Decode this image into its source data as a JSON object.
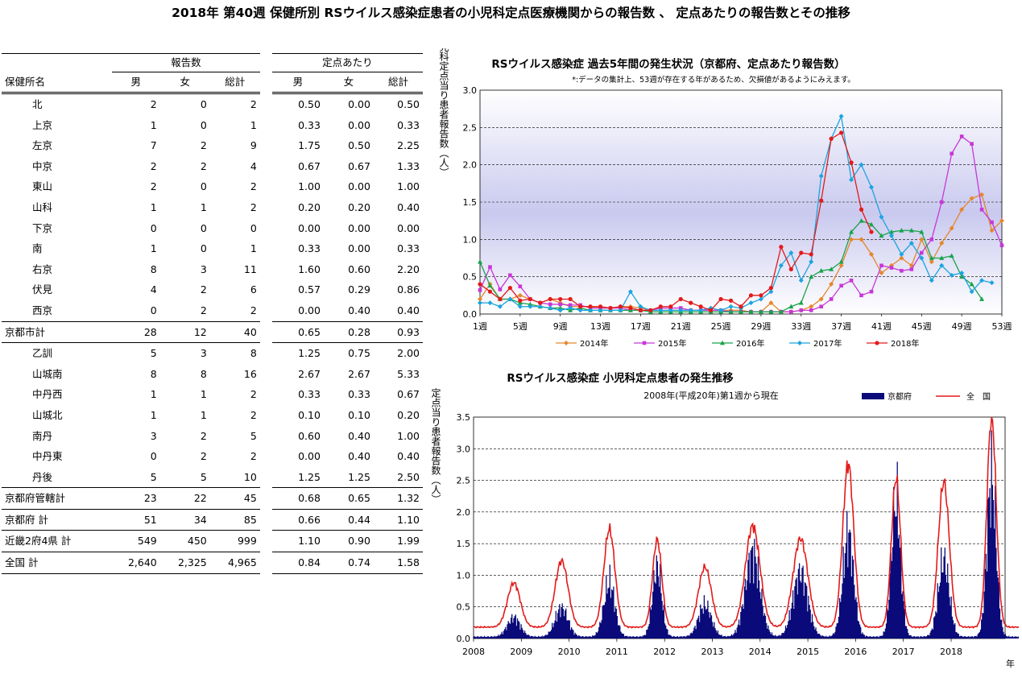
{
  "page_title": "2018年 第40週 保健所別 RSウイルス感染症患者の小児科定点医療機関からの報告数 、 定点あたりの報告数とその推移",
  "table": {
    "group_headers": {
      "reports": "報告数",
      "per_sentinel": "定点あたり"
    },
    "columns": [
      "保健所名",
      "男",
      "女",
      "総計",
      "男",
      "女",
      "総計"
    ],
    "rows": [
      {
        "name": "北",
        "type": "sub",
        "m": "2",
        "f": "0",
        "t": "2",
        "pm": "0.50",
        "pf": "0.00",
        "pt": "0.50"
      },
      {
        "name": "上京",
        "type": "sub",
        "m": "1",
        "f": "0",
        "t": "1",
        "pm": "0.33",
        "pf": "0.00",
        "pt": "0.33"
      },
      {
        "name": "左京",
        "type": "sub",
        "m": "7",
        "f": "2",
        "t": "9",
        "pm": "1.75",
        "pf": "0.50",
        "pt": "2.25"
      },
      {
        "name": "中京",
        "type": "sub",
        "m": "2",
        "f": "2",
        "t": "4",
        "pm": "0.67",
        "pf": "0.67",
        "pt": "1.33"
      },
      {
        "name": "東山",
        "type": "sub",
        "m": "2",
        "f": "0",
        "t": "2",
        "pm": "1.00",
        "pf": "0.00",
        "pt": "1.00"
      },
      {
        "name": "山科",
        "type": "sub",
        "m": "1",
        "f": "1",
        "t": "2",
        "pm": "0.20",
        "pf": "0.20",
        "pt": "0.40"
      },
      {
        "name": "下京",
        "type": "sub",
        "m": "0",
        "f": "0",
        "t": "0",
        "pm": "0.00",
        "pf": "0.00",
        "pt": "0.00"
      },
      {
        "name": "南",
        "type": "sub",
        "m": "1",
        "f": "0",
        "t": "1",
        "pm": "0.33",
        "pf": "0.00",
        "pt": "0.33"
      },
      {
        "name": "右京",
        "type": "sub",
        "m": "8",
        "f": "3",
        "t": "11",
        "pm": "1.60",
        "pf": "0.60",
        "pt": "2.20"
      },
      {
        "name": "伏見",
        "type": "sub",
        "m": "4",
        "f": "2",
        "t": "6",
        "pm": "0.57",
        "pf": "0.29",
        "pt": "0.86"
      },
      {
        "name": "西京",
        "type": "sub",
        "m": "0",
        "f": "2",
        "t": "2",
        "pm": "0.00",
        "pf": "0.40",
        "pt": "0.40"
      },
      {
        "name": "京都市計",
        "type": "total",
        "m": "28",
        "f": "12",
        "t": "40",
        "pm": "0.65",
        "pf": "0.28",
        "pt": "0.93"
      },
      {
        "name": "乙訓",
        "type": "sub",
        "m": "5",
        "f": "3",
        "t": "8",
        "pm": "1.25",
        "pf": "0.75",
        "pt": "2.00"
      },
      {
        "name": "山城南",
        "type": "sub",
        "m": "8",
        "f": "8",
        "t": "16",
        "pm": "2.67",
        "pf": "2.67",
        "pt": "5.33"
      },
      {
        "name": "中丹西",
        "type": "sub",
        "m": "1",
        "f": "1",
        "t": "2",
        "pm": "0.33",
        "pf": "0.33",
        "pt": "0.67"
      },
      {
        "name": "山城北",
        "type": "sub",
        "m": "1",
        "f": "1",
        "t": "2",
        "pm": "0.10",
        "pf": "0.10",
        "pt": "0.20"
      },
      {
        "name": "南丹",
        "type": "sub",
        "m": "3",
        "f": "2",
        "t": "5",
        "pm": "0.60",
        "pf": "0.40",
        "pt": "1.00"
      },
      {
        "name": "中丹東",
        "type": "sub",
        "m": "0",
        "f": "2",
        "t": "2",
        "pm": "0.00",
        "pf": "0.40",
        "pt": "0.40"
      },
      {
        "name": "丹後",
        "type": "sub",
        "m": "5",
        "f": "5",
        "t": "10",
        "pm": "1.25",
        "pf": "1.25",
        "pt": "2.50"
      },
      {
        "name": "京都府管轄計",
        "type": "total",
        "m": "23",
        "f": "22",
        "t": "45",
        "pm": "0.68",
        "pf": "0.65",
        "pt": "1.32"
      },
      {
        "name": "京都府 計",
        "type": "total",
        "m": "51",
        "f": "34",
        "t": "85",
        "pm": "0.66",
        "pf": "0.44",
        "pt": "1.10"
      },
      {
        "name": "近畿2府4県 計",
        "type": "total",
        "m": "549",
        "f": "450",
        "t": "999",
        "pm": "1.10",
        "pf": "0.90",
        "pt": "1.99"
      },
      {
        "name": "全国 計",
        "type": "total",
        "m": "2,640",
        "f": "2,325",
        "t": "4,965",
        "pm": "0.84",
        "pf": "0.74",
        "pt": "1.58"
      }
    ]
  },
  "chart_data": [
    {
      "type": "line",
      "title": "RSウイルス感染症 過去5年間の発生状況（京都府、定点あたり報告数）",
      "subtitle": "*:データの集計上、53週が存在する年があるため、欠損値があるようにみえます。",
      "ylabel": "小児科定点当り患者報告数（人）",
      "ylim": [
        0,
        3.0
      ],
      "yticks": [
        "0.0",
        "0.5",
        "1.0",
        "1.5",
        "2.0",
        "2.5",
        "3.0"
      ],
      "xlim": [
        1,
        53
      ],
      "xticks": [
        "1週",
        "5週",
        "9週",
        "13週",
        "17週",
        "21週",
        "25週",
        "29週",
        "33週",
        "37週",
        "41週",
        "45週",
        "49週",
        "53週"
      ],
      "grid": true,
      "legend": "bottom",
      "series": [
        {
          "name": "2014年",
          "color": "#e5862a",
          "marker": "diamond",
          "values": [
            0.2,
            0.4,
            0.2,
            0.2,
            0.25,
            0.2,
            0.15,
            0.2,
            0.15,
            0.1,
            0.1,
            0.1,
            0.08,
            0.08,
            0.1,
            0.1,
            0.08,
            0.05,
            0.05,
            0.05,
            0.05,
            0.05,
            0.05,
            0.05,
            0.05,
            0.05,
            0.05,
            0.03,
            0.03,
            0.15,
            0.03,
            0.03,
            0.05,
            0.1,
            0.2,
            0.4,
            0.65,
            1.0,
            1.0,
            0.8,
            0.55,
            0.65,
            0.75,
            0.65,
            1.0,
            0.7,
            0.95,
            1.15,
            1.4,
            1.55,
            1.6,
            1.12,
            1.25
          ]
        },
        {
          "name": "2015年",
          "color": "#c737d6",
          "marker": "square",
          "values": [
            0.32,
            0.63,
            0.33,
            0.52,
            0.37,
            0.2,
            0.15,
            0.13,
            0.13,
            0.12,
            0.12,
            0.08,
            0.08,
            0.08,
            0.08,
            0.05,
            0.05,
            0.05,
            0.08,
            0.08,
            0.08,
            0.05,
            0.05,
            0.05,
            0.05,
            0.03,
            0.03,
            0.03,
            0.03,
            0.03,
            0.03,
            0.03,
            0.05,
            0.05,
            0.1,
            0.2,
            0.38,
            0.45,
            0.25,
            0.3,
            0.65,
            0.62,
            0.58,
            0.6,
            0.82,
            1.0,
            1.5,
            2.15,
            2.38,
            2.28,
            1.4,
            1.23,
            0.92
          ]
        },
        {
          "name": "2016年",
          "color": "#18a34a",
          "marker": "triangle",
          "values": [
            0.7,
            0.38,
            0.2,
            0.2,
            0.15,
            0.13,
            0.1,
            0.08,
            0.08,
            0.05,
            0.08,
            0.05,
            0.05,
            0.05,
            0.05,
            0.05,
            0.05,
            0.03,
            0.03,
            0.03,
            0.03,
            0.03,
            0.03,
            0.03,
            0.03,
            0.03,
            0.03,
            0.03,
            0.03,
            0.03,
            0.03,
            0.1,
            0.15,
            0.5,
            0.58,
            0.6,
            0.7,
            1.1,
            1.25,
            1.2,
            1.05,
            1.1,
            1.12,
            1.12,
            1.1,
            0.75,
            0.75,
            0.78,
            0.5,
            0.4,
            0.2
          ]
        },
        {
          "name": "2017年",
          "color": "#1aa4de",
          "marker": "diamond",
          "values": [
            0.15,
            0.15,
            0.1,
            0.2,
            0.1,
            0.1,
            0.1,
            0.08,
            0.05,
            0.08,
            0.05,
            0.05,
            0.05,
            0.05,
            0.05,
            0.3,
            0.1,
            0.05,
            0.05,
            0.05,
            0.05,
            0.05,
            0.05,
            0.08,
            0.05,
            0.1,
            0.08,
            0.15,
            0.2,
            0.3,
            0.65,
            0.82,
            0.45,
            0.7,
            1.85,
            2.35,
            2.65,
            1.8,
            2.0,
            1.7,
            1.3,
            1.05,
            0.8,
            0.95,
            0.75,
            0.45,
            0.65,
            0.52,
            0.55,
            0.3,
            0.45,
            0.42
          ]
        },
        {
          "name": "2018年",
          "color": "#e31a1a",
          "marker": "circle",
          "values": [
            0.4,
            0.3,
            0.2,
            0.35,
            0.18,
            0.2,
            0.15,
            0.2,
            0.2,
            0.2,
            0.1,
            0.1,
            0.1,
            0.08,
            0.1,
            0.08,
            0.05,
            0.05,
            0.1,
            0.1,
            0.2,
            0.15,
            0.1,
            0.05,
            0.2,
            0.18,
            0.1,
            0.25,
            0.25,
            0.35,
            0.9,
            0.6,
            0.82,
            0.8,
            1.52,
            2.35,
            2.43,
            2.03,
            1.4,
            1.1
          ]
        }
      ]
    },
    {
      "type": "area",
      "title": "RSウイルス感染症 小児科定点患者の発生推移",
      "subtitle": "2008年(平成20年)第1週から現在",
      "ylabel": "定点当り患者報告数（人）",
      "xlabel": "年",
      "ylim": [
        0,
        3.5
      ],
      "yticks": [
        "0.0",
        "0.5",
        "1.0",
        "1.5",
        "2.0",
        "2.5",
        "3.0",
        "3.5"
      ],
      "xticks": [
        "2008",
        "2009",
        "2010",
        "2011",
        "2012",
        "2013",
        "2014",
        "2015",
        "2016",
        "2017",
        "2018"
      ],
      "legend": "top-right",
      "series": [
        {
          "name": "京都府",
          "style": "area",
          "color": "#0a0a7a",
          "peaks": [
            0.3,
            0.45,
            0.85,
            1.1,
            0.5,
            1.3,
            1.0,
            1.6,
            2.15,
            1.2,
            2.5,
            1.6
          ]
        },
        {
          "name": "全　国",
          "style": "line",
          "color": "#e31a1a",
          "peaks": [
            0.7,
            1.05,
            1.55,
            1.38,
            0.95,
            1.6,
            1.4,
            2.58,
            2.35,
            2.3,
            3.35,
            2.45
          ]
        }
      ]
    }
  ]
}
